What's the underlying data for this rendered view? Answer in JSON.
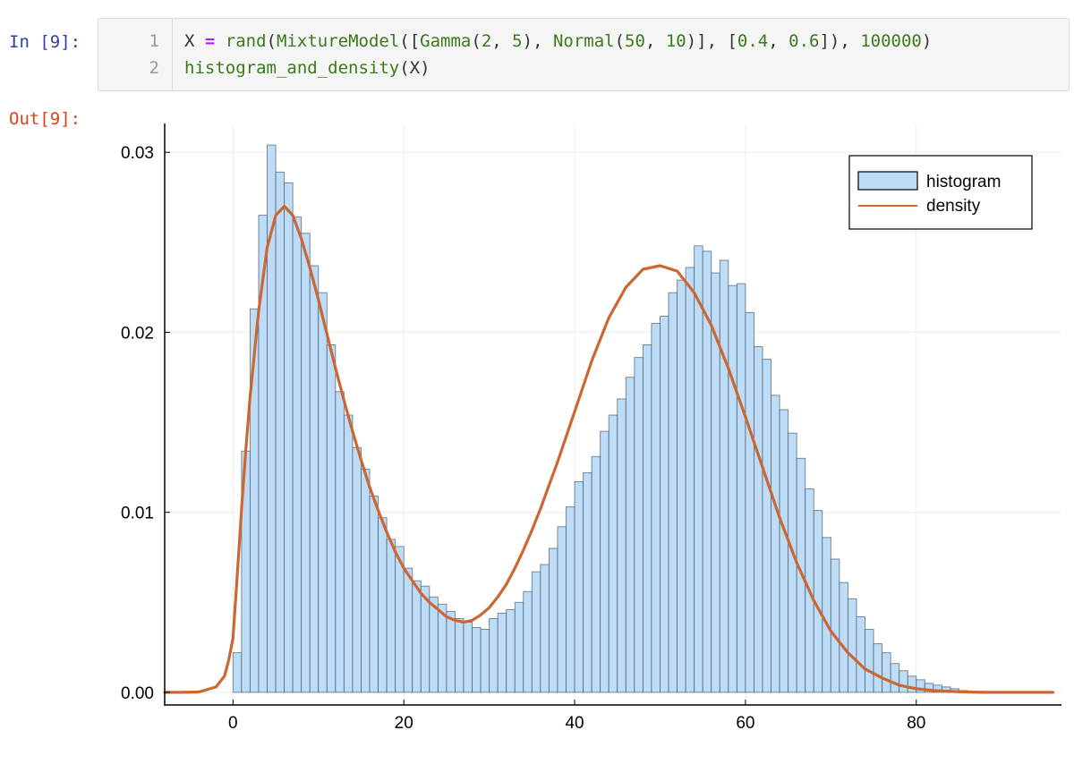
{
  "cells": {
    "in_prompt": "In [9]:",
    "out_prompt": "Out[9]:",
    "line_numbers": [
      "1",
      "2"
    ],
    "code": {
      "line1": [
        "X",
        " = ",
        "rand",
        "(",
        "MixtureModel",
        "([",
        "Gamma",
        "(",
        "2",
        ", ",
        "5",
        "), ",
        "Normal",
        "(",
        "50",
        ", ",
        "10",
        ")], [",
        "0.4",
        ", ",
        "0.6",
        "]), ",
        "100000",
        ")"
      ],
      "line2": [
        "histogram_and_density",
        "(X)"
      ]
    }
  },
  "colors": {
    "hist_fill": "#bddcf7",
    "hist_stroke": "#4a5866",
    "density": "#cc6633",
    "grid": "#ececec",
    "in_prompt": "#303f9f",
    "out_prompt": "#d84315"
  },
  "chart_data": {
    "type": "bar",
    "title": "",
    "xlabel": "",
    "ylabel": "",
    "xlim": [
      -8,
      97
    ],
    "ylim": [
      -0.0007,
      0.0316
    ],
    "x_ticks": [
      0,
      20,
      40,
      60,
      80
    ],
    "x_tick_labels": [
      "0",
      "20",
      "40",
      "60",
      "80"
    ],
    "y_ticks": [
      0.0,
      0.01,
      0.02,
      0.03
    ],
    "y_tick_labels": [
      "0.00",
      "0.01",
      "0.02",
      "0.03"
    ],
    "grid": true,
    "legend": {
      "placement": "top-right",
      "entries": [
        "histogram",
        "density"
      ]
    },
    "series": [
      {
        "name": "histogram",
        "kind": "histogram",
        "bin_width": 1,
        "bin_edges_start": 0,
        "values": [
          0.0022,
          0.0134,
          0.0213,
          0.0265,
          0.0304,
          0.0289,
          0.0283,
          0.0264,
          0.0255,
          0.0237,
          0.0222,
          0.0193,
          0.0167,
          0.0154,
          0.0136,
          0.0124,
          0.0109,
          0.0097,
          0.0085,
          0.0081,
          0.0069,
          0.0062,
          0.0059,
          0.0053,
          0.0049,
          0.0045,
          0.0041,
          0.0039,
          0.0036,
          0.0035,
          0.0041,
          0.0044,
          0.0046,
          0.005,
          0.0056,
          0.0067,
          0.0071,
          0.008,
          0.0092,
          0.0103,
          0.0117,
          0.0122,
          0.0131,
          0.0145,
          0.0154,
          0.0163,
          0.0175,
          0.0186,
          0.0193,
          0.0205,
          0.0209,
          0.0222,
          0.0229,
          0.0236,
          0.0248,
          0.0245,
          0.0233,
          0.024,
          0.0226,
          0.0227,
          0.0211,
          0.0192,
          0.0185,
          0.0165,
          0.0157,
          0.0144,
          0.013,
          0.0113,
          0.0101,
          0.0086,
          0.0074,
          0.0061,
          0.0052,
          0.0042,
          0.0035,
          0.0027,
          0.0022,
          0.0016,
          0.0012,
          0.0009,
          0.0007,
          0.0005,
          0.0004,
          0.0003,
          0.0002,
          0.0001
        ]
      },
      {
        "name": "density",
        "kind": "line",
        "x": [
          -8,
          -6,
          -4,
          -2,
          -1,
          -0.5,
          0,
          0.5,
          1,
          1.5,
          2,
          2.5,
          3,
          4,
          5,
          6,
          7,
          8,
          9,
          10,
          11,
          12,
          13,
          14,
          15,
          16,
          17,
          18,
          19,
          20,
          21,
          22,
          23,
          24,
          25,
          26,
          27,
          28,
          29,
          30,
          31,
          32,
          33,
          34,
          35,
          36,
          37,
          38,
          39,
          40,
          42,
          44,
          46,
          48,
          50,
          52,
          54,
          56,
          58,
          60,
          62,
          64,
          66,
          68,
          70,
          72,
          74,
          76,
          78,
          80,
          82,
          84,
          86,
          88,
          90,
          92,
          96
        ],
        "y": [
          0,
          0,
          2e-05,
          0.0003,
          0.0009,
          0.0018,
          0.003,
          0.0065,
          0.0102,
          0.0135,
          0.0164,
          0.0188,
          0.0212,
          0.0247,
          0.0265,
          0.027,
          0.0265,
          0.0252,
          0.0236,
          0.0218,
          0.0199,
          0.018,
          0.0162,
          0.0145,
          0.0129,
          0.0114,
          0.0101,
          0.0089,
          0.0078,
          0.0069,
          0.0062,
          0.0055,
          0.005,
          0.0046,
          0.0042,
          0.004,
          0.0039,
          0.004,
          0.0043,
          0.0047,
          0.0053,
          0.006,
          0.0069,
          0.0079,
          0.009,
          0.0102,
          0.0115,
          0.0128,
          0.0142,
          0.0156,
          0.0184,
          0.0208,
          0.0225,
          0.0235,
          0.0237,
          0.0234,
          0.0222,
          0.0204,
          0.018,
          0.0153,
          0.0125,
          0.0097,
          0.0072,
          0.0051,
          0.0034,
          0.0022,
          0.0013,
          0.0008,
          0.0004,
          0.0002,
          0.0001,
          5e-05,
          2e-05,
          0,
          0,
          0,
          0
        ]
      }
    ]
  }
}
